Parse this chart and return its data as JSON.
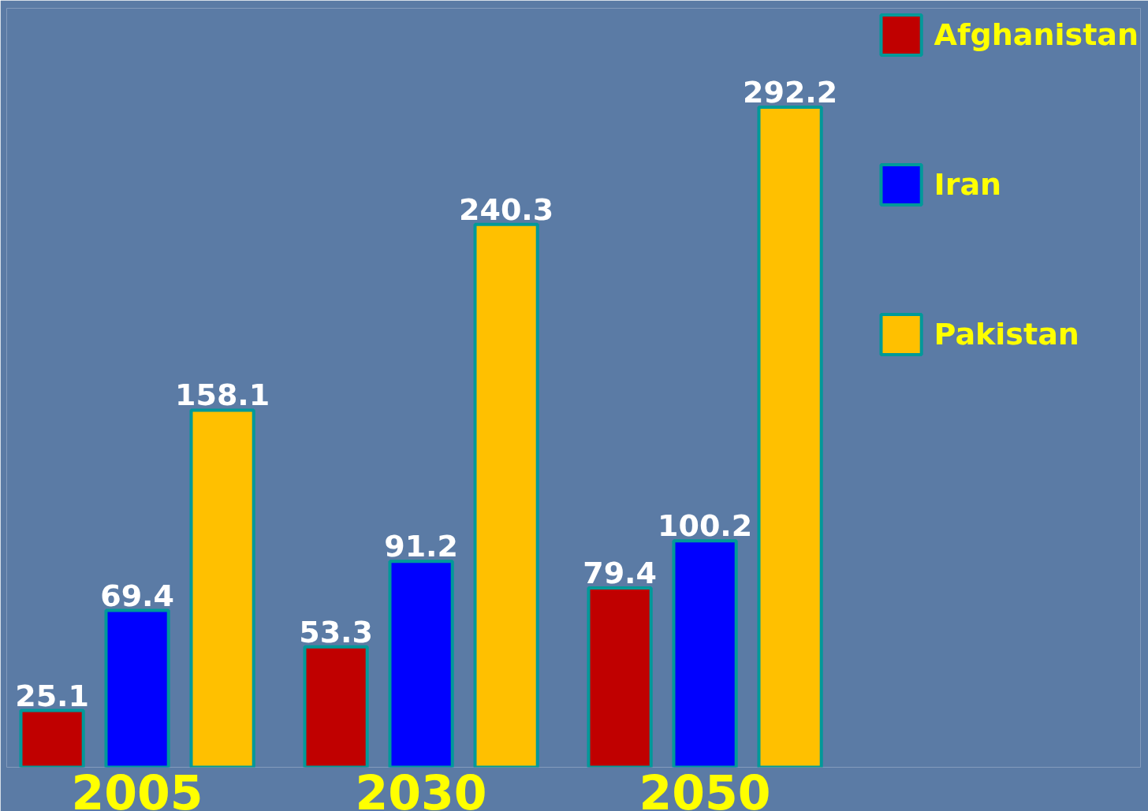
{
  "chart_data": {
    "type": "bar",
    "categories": [
      "2005",
      "2030",
      "2050"
    ],
    "series": [
      {
        "name": "Afghanistan",
        "color": "#c00000",
        "values": [
          25.1,
          53.3,
          79.4
        ]
      },
      {
        "name": "Iran",
        "color": "#0000ff",
        "values": [
          69.4,
          91.2,
          100.2
        ]
      },
      {
        "name": "Pakistan",
        "color": "#ffc000",
        "values": [
          158.1,
          240.3,
          292.2
        ]
      }
    ],
    "data_labels": true,
    "tick_labels": "x",
    "legend": "top right"
  }
}
